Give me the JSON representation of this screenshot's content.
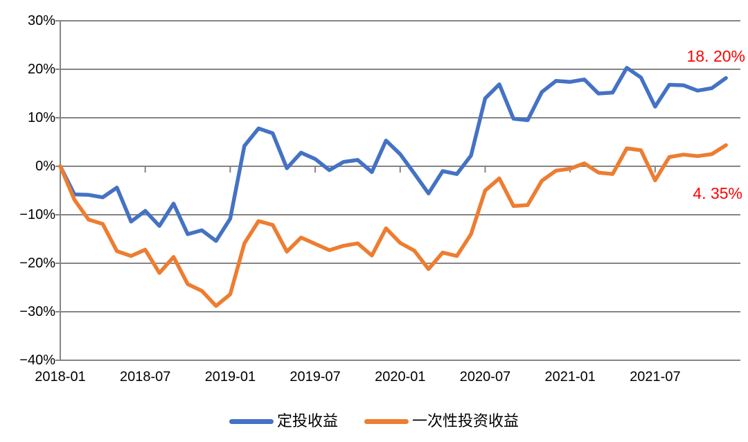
{
  "chart_data": {
    "type": "line",
    "title": "",
    "categories": [
      "2018-01",
      "2018-02",
      "2018-03",
      "2018-04",
      "2018-05",
      "2018-06",
      "2018-07",
      "2018-08",
      "2018-09",
      "2018-10",
      "2018-11",
      "2018-12",
      "2019-01",
      "2019-02",
      "2019-03",
      "2019-04",
      "2019-05",
      "2019-06",
      "2019-07",
      "2019-08",
      "2019-09",
      "2019-10",
      "2019-11",
      "2019-12",
      "2020-01",
      "2020-02",
      "2020-03",
      "2020-04",
      "2020-05",
      "2020-06",
      "2020-07",
      "2020-08",
      "2020-09",
      "2020-10",
      "2020-11",
      "2020-12",
      "2021-01",
      "2021-02",
      "2021-03",
      "2021-04",
      "2021-05",
      "2021-06",
      "2021-07",
      "2021-08",
      "2021-09",
      "2021-10",
      "2021-11",
      "2021-12"
    ],
    "series": [
      {
        "name": "定投收益",
        "color": "#4472C4",
        "final_value_pct": 18.2,
        "values": [
          0,
          -5.8,
          -5.9,
          -6.4,
          -4.4,
          -11.4,
          -9.2,
          -12.3,
          -7.7,
          -14.0,
          -13.2,
          -15.4,
          -10.8,
          4.2,
          7.8,
          6.8,
          -0.4,
          2.8,
          1.5,
          -0.8,
          0.9,
          1.3,
          -1.2,
          5.3,
          2.5,
          -1.5,
          -5.6,
          -1.0,
          -1.6,
          2.2,
          14.0,
          16.9,
          9.8,
          9.5,
          15.3,
          17.6,
          17.4,
          17.9,
          15.0,
          15.2,
          20.3,
          18.3,
          12.3,
          16.8,
          16.7,
          15.6,
          16.1,
          18.2
        ]
      },
      {
        "name": "一次性投资收益",
        "color": "#ED7D31",
        "final_value_pct": 4.35,
        "values": [
          0,
          -6.9,
          -11.0,
          -11.9,
          -17.5,
          -18.5,
          -17.2,
          -22.0,
          -18.7,
          -24.3,
          -25.7,
          -28.8,
          -26.4,
          -15.9,
          -11.3,
          -12.1,
          -17.6,
          -14.7,
          -16.0,
          -17.3,
          -16.4,
          -15.9,
          -18.4,
          -12.8,
          -15.8,
          -17.4,
          -21.2,
          -17.8,
          -18.5,
          -14.0,
          -5.0,
          -2.5,
          -8.2,
          -8.0,
          -3.0,
          -0.9,
          -0.5,
          0.6,
          -1.3,
          -1.6,
          3.7,
          3.3,
          -2.9,
          1.9,
          2.4,
          2.1,
          2.5,
          4.35
        ]
      }
    ],
    "y_axis": {
      "min": -40,
      "max": 30,
      "step": 10,
      "unit": "%",
      "tick_labels": [
        "30%",
        "20%",
        "10%",
        "0%",
        "−10%",
        "−20%",
        "−30%",
        "−40%"
      ]
    },
    "x_axis": {
      "tick_labels": [
        "2018-01",
        "2018-07",
        "2019-01",
        "2019-07",
        "2020-01",
        "2020-07",
        "2021-01",
        "2021-07"
      ],
      "tick_every_months": 6
    },
    "annotations": [
      {
        "text": "18. 20%",
        "series": "定投收益",
        "color": "#FF0000",
        "position": "end-of-blue-line"
      },
      {
        "text": "4. 35%",
        "series": "一次性投资收益",
        "color": "#FF0000",
        "position": "end-of-orange-line"
      }
    ],
    "grid": true,
    "grid_color": "#848484",
    "legend_position": "bottom"
  }
}
